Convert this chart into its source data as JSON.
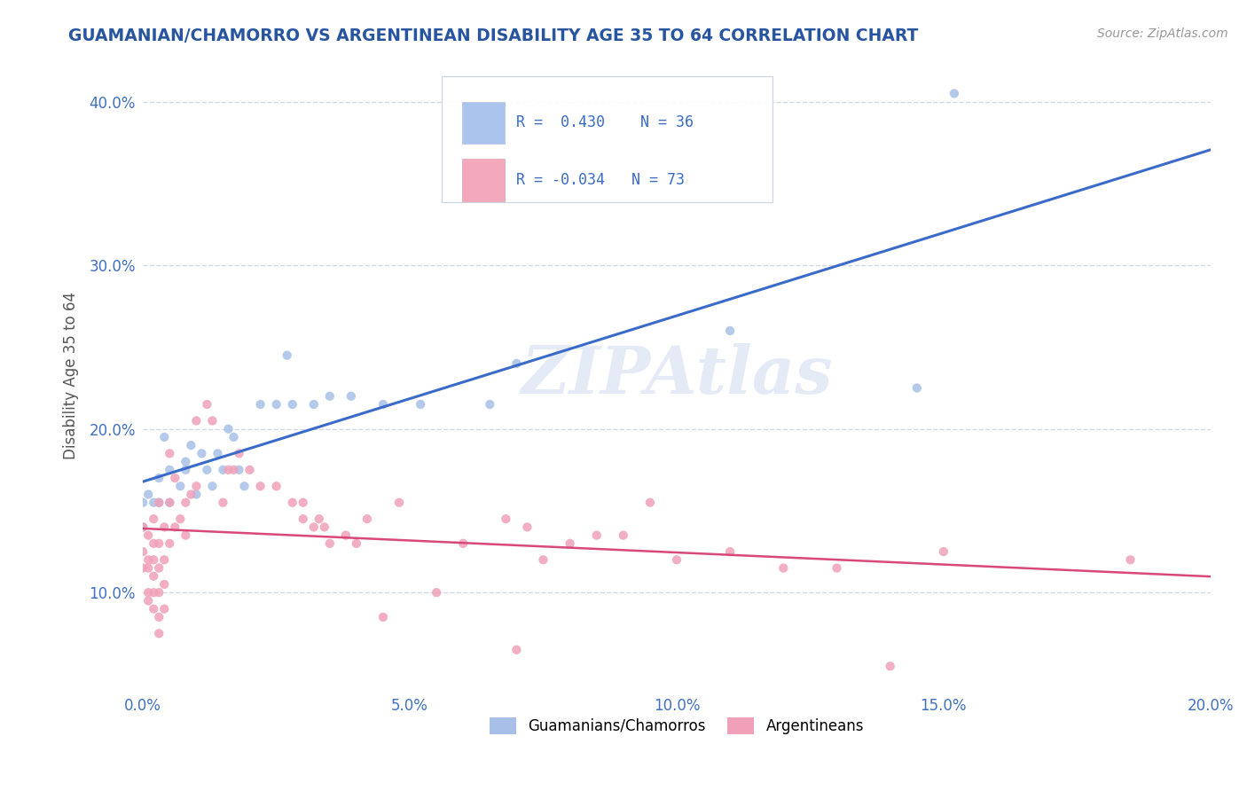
{
  "title": "GUAMANIAN/CHAMORRO VS ARGENTINEAN DISABILITY AGE 35 TO 64 CORRELATION CHART",
  "source_text": "Source: ZipAtlas.com",
  "ylabel": "Disability Age 35 to 64",
  "xlim": [
    0.0,
    0.2
  ],
  "ylim": [
    0.04,
    0.425
  ],
  "xtick_labels": [
    "0.0%",
    "5.0%",
    "10.0%",
    "15.0%",
    "20.0%"
  ],
  "xtick_vals": [
    0.0,
    0.05,
    0.1,
    0.15,
    0.2
  ],
  "ytick_labels": [
    "10.0%",
    "20.0%",
    "30.0%",
    "40.0%"
  ],
  "ytick_vals": [
    0.1,
    0.2,
    0.3,
    0.4
  ],
  "blue_color": "#aac4ee",
  "pink_color": "#f4a8bb",
  "line_blue": "#3a6bc8",
  "line_pink": "#d84878",
  "title_color": "#2855a0",
  "tick_color": "#4070c0",
  "label_color": "#555555",
  "blue_scatter_color": "#a8c0e8",
  "pink_scatter_color": "#f0a0b8",
  "blue_points": [
    [
      0.0,
      0.155
    ],
    [
      0.0,
      0.14
    ],
    [
      0.001,
      0.16
    ],
    [
      0.002,
      0.155
    ],
    [
      0.003,
      0.17
    ],
    [
      0.003,
      0.155
    ],
    [
      0.004,
      0.195
    ],
    [
      0.005,
      0.175
    ],
    [
      0.005,
      0.155
    ],
    [
      0.007,
      0.165
    ],
    [
      0.008,
      0.175
    ],
    [
      0.008,
      0.18
    ],
    [
      0.009,
      0.19
    ],
    [
      0.01,
      0.16
    ],
    [
      0.011,
      0.185
    ],
    [
      0.012,
      0.175
    ],
    [
      0.013,
      0.165
    ],
    [
      0.014,
      0.185
    ],
    [
      0.015,
      0.175
    ],
    [
      0.016,
      0.2
    ],
    [
      0.017,
      0.195
    ],
    [
      0.018,
      0.175
    ],
    [
      0.019,
      0.165
    ],
    [
      0.022,
      0.215
    ],
    [
      0.025,
      0.215
    ],
    [
      0.027,
      0.245
    ],
    [
      0.028,
      0.215
    ],
    [
      0.032,
      0.215
    ],
    [
      0.035,
      0.22
    ],
    [
      0.039,
      0.22
    ],
    [
      0.045,
      0.215
    ],
    [
      0.052,
      0.215
    ],
    [
      0.065,
      0.215
    ],
    [
      0.07,
      0.24
    ],
    [
      0.11,
      0.26
    ],
    [
      0.145,
      0.225
    ],
    [
      0.152,
      0.405
    ]
  ],
  "pink_points": [
    [
      0.0,
      0.14
    ],
    [
      0.0,
      0.125
    ],
    [
      0.0,
      0.115
    ],
    [
      0.001,
      0.135
    ],
    [
      0.001,
      0.12
    ],
    [
      0.001,
      0.115
    ],
    [
      0.001,
      0.1
    ],
    [
      0.001,
      0.095
    ],
    [
      0.002,
      0.145
    ],
    [
      0.002,
      0.13
    ],
    [
      0.002,
      0.12
    ],
    [
      0.002,
      0.11
    ],
    [
      0.002,
      0.1
    ],
    [
      0.002,
      0.09
    ],
    [
      0.003,
      0.155
    ],
    [
      0.003,
      0.13
    ],
    [
      0.003,
      0.115
    ],
    [
      0.003,
      0.1
    ],
    [
      0.003,
      0.085
    ],
    [
      0.003,
      0.075
    ],
    [
      0.004,
      0.14
    ],
    [
      0.004,
      0.12
    ],
    [
      0.004,
      0.105
    ],
    [
      0.004,
      0.09
    ],
    [
      0.005,
      0.185
    ],
    [
      0.005,
      0.155
    ],
    [
      0.005,
      0.13
    ],
    [
      0.006,
      0.17
    ],
    [
      0.006,
      0.14
    ],
    [
      0.007,
      0.145
    ],
    [
      0.008,
      0.155
    ],
    [
      0.008,
      0.135
    ],
    [
      0.009,
      0.16
    ],
    [
      0.01,
      0.205
    ],
    [
      0.01,
      0.165
    ],
    [
      0.012,
      0.215
    ],
    [
      0.013,
      0.205
    ],
    [
      0.015,
      0.155
    ],
    [
      0.016,
      0.175
    ],
    [
      0.017,
      0.175
    ],
    [
      0.018,
      0.185
    ],
    [
      0.02,
      0.175
    ],
    [
      0.022,
      0.165
    ],
    [
      0.025,
      0.165
    ],
    [
      0.028,
      0.155
    ],
    [
      0.03,
      0.155
    ],
    [
      0.03,
      0.145
    ],
    [
      0.032,
      0.14
    ],
    [
      0.033,
      0.145
    ],
    [
      0.034,
      0.14
    ],
    [
      0.035,
      0.13
    ],
    [
      0.038,
      0.135
    ],
    [
      0.04,
      0.13
    ],
    [
      0.042,
      0.145
    ],
    [
      0.045,
      0.085
    ],
    [
      0.048,
      0.155
    ],
    [
      0.055,
      0.1
    ],
    [
      0.06,
      0.13
    ],
    [
      0.068,
      0.145
    ],
    [
      0.07,
      0.065
    ],
    [
      0.072,
      0.14
    ],
    [
      0.075,
      0.12
    ],
    [
      0.08,
      0.13
    ],
    [
      0.085,
      0.135
    ],
    [
      0.09,
      0.135
    ],
    [
      0.095,
      0.155
    ],
    [
      0.1,
      0.12
    ],
    [
      0.11,
      0.125
    ],
    [
      0.12,
      0.115
    ],
    [
      0.13,
      0.115
    ],
    [
      0.14,
      0.055
    ],
    [
      0.15,
      0.125
    ],
    [
      0.185,
      0.12
    ]
  ]
}
